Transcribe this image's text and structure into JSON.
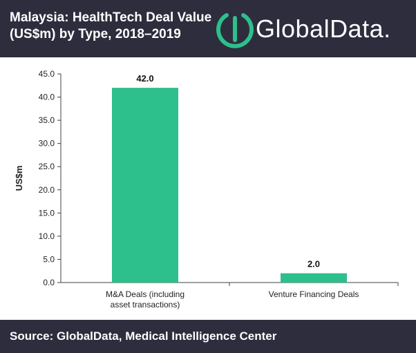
{
  "header": {
    "title_line1": "Malaysia: HealthTech Deal Value",
    "title_line2": "(US$m) by Type, 2018–2019",
    "logo_text": "GlobalData."
  },
  "footer": {
    "source": "Source: GlobalData, Medical Intelligence Center"
  },
  "colors": {
    "bar": "#2dbf8c",
    "background_dark": "#2d2d3d",
    "logo_accent": "#2dbf8c"
  },
  "icons": {
    "logo": "globaldata-logo-icon"
  },
  "chart_data": {
    "type": "bar",
    "categories": [
      [
        "M&A Deals (including",
        "asset transactions)"
      ],
      [
        "Venture Financing Deals"
      ]
    ],
    "values": [
      42.0,
      2.0
    ],
    "data_labels": [
      "42.0",
      "2.0"
    ],
    "ylabel": "US$m",
    "ylim": [
      0,
      45
    ],
    "yticks": [
      0,
      5,
      10,
      15,
      20,
      25,
      30,
      35,
      40,
      45
    ],
    "ytick_labels": [
      "0.0",
      "5.0",
      "10.0",
      "15.0",
      "20.0",
      "25.0",
      "30.0",
      "35.0",
      "40.0",
      "45.0"
    ],
    "grid": false,
    "legend": "none"
  }
}
